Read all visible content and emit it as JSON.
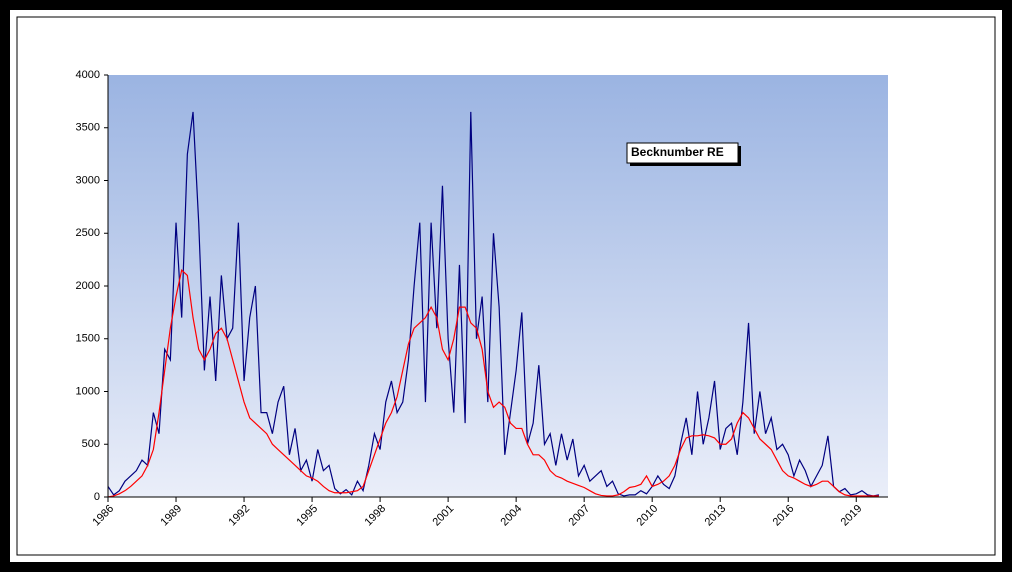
{
  "chart_data": {
    "type": "line",
    "x": [
      1986,
      1986.25,
      1986.5,
      1986.75,
      1987,
      1987.25,
      1987.5,
      1987.75,
      1988,
      1988.25,
      1988.5,
      1988.75,
      1989,
      1989.25,
      1989.5,
      1989.75,
      1990,
      1990.25,
      1990.5,
      1990.75,
      1991,
      1991.25,
      1991.5,
      1991.75,
      1992,
      1992.25,
      1992.5,
      1992.75,
      1993,
      1993.25,
      1993.5,
      1993.75,
      1994,
      1994.25,
      1994.5,
      1994.75,
      1995,
      1995.25,
      1995.5,
      1995.75,
      1996,
      1996.25,
      1996.5,
      1996.75,
      1997,
      1997.25,
      1997.5,
      1997.75,
      1998,
      1998.25,
      1998.5,
      1998.75,
      1999,
      1999.25,
      1999.5,
      1999.75,
      2000,
      2000.25,
      2000.5,
      2000.75,
      2001,
      2001.25,
      2001.5,
      2001.75,
      2002,
      2002.25,
      2002.5,
      2002.75,
      2003,
      2003.25,
      2003.5,
      2003.75,
      2004,
      2004.25,
      2004.5,
      2004.75,
      2005,
      2005.25,
      2005.5,
      2005.75,
      2006,
      2006.25,
      2006.5,
      2006.75,
      2007,
      2007.25,
      2007.5,
      2007.75,
      2008,
      2008.25,
      2008.5,
      2008.75,
      2009,
      2009.25,
      2009.5,
      2009.75,
      2010,
      2010.25,
      2010.5,
      2010.75,
      2011,
      2011.25,
      2011.5,
      2011.75,
      2012,
      2012.25,
      2012.5,
      2012.75,
      2013,
      2013.25,
      2013.5,
      2013.75,
      2014,
      2014.25,
      2014.5,
      2014.75,
      2015,
      2015.25,
      2015.5,
      2015.75,
      2016,
      2016.25,
      2016.5,
      2016.75,
      2017,
      2017.25,
      2017.5,
      2017.75,
      2018,
      2018.25,
      2018.5,
      2018.75,
      2019,
      2019.25,
      2019.5,
      2019.75,
      2020
    ],
    "series": [
      {
        "name": "Becknumber RE",
        "color": "#000080",
        "values": [
          100,
          20,
          60,
          150,
          200,
          250,
          350,
          300,
          800,
          600,
          1400,
          1300,
          2600,
          1700,
          3250,
          3650,
          2600,
          1200,
          1900,
          1100,
          2100,
          1500,
          1600,
          2600,
          1100,
          1700,
          2000,
          800,
          800,
          600,
          900,
          1050,
          400,
          650,
          250,
          350,
          150,
          450,
          250,
          300,
          80,
          30,
          70,
          20,
          150,
          60,
          300,
          600,
          450,
          900,
          1100,
          800,
          900,
          1300,
          2000,
          2600,
          900,
          2600,
          1600,
          2950,
          1500,
          800,
          2200,
          700,
          3650,
          1500,
          1900,
          900,
          2500,
          1800,
          400,
          800,
          1200,
          1750,
          500,
          700,
          1250,
          500,
          600,
          300,
          600,
          350,
          550,
          200,
          300,
          150,
          200,
          250,
          100,
          150,
          30,
          10,
          20,
          20,
          60,
          30,
          100,
          200,
          120,
          80,
          200,
          500,
          750,
          400,
          1000,
          500,
          750,
          1100,
          450,
          650,
          700,
          400,
          900,
          1650,
          600,
          1000,
          600,
          750,
          450,
          500,
          400,
          200,
          350,
          250,
          100,
          200,
          300,
          580,
          100,
          50,
          80,
          20,
          30,
          60,
          20,
          10,
          20
        ]
      },
      {
        "color": "#ff0000",
        "values": [
          0,
          10,
          30,
          60,
          100,
          150,
          200,
          300,
          450,
          800,
          1200,
          1600,
          1900,
          2150,
          2100,
          1700,
          1400,
          1300,
          1400,
          1550,
          1600,
          1500,
          1300,
          1100,
          900,
          750,
          700,
          650,
          600,
          500,
          450,
          400,
          350,
          300,
          250,
          200,
          180,
          150,
          100,
          60,
          40,
          40,
          40,
          50,
          60,
          100,
          250,
          400,
          550,
          700,
          800,
          950,
          1200,
          1450,
          1600,
          1650,
          1700,
          1800,
          1700,
          1400,
          1300,
          1500,
          1800,
          1800,
          1650,
          1600,
          1400,
          1000,
          850,
          900,
          850,
          700,
          650,
          650,
          500,
          400,
          400,
          350,
          250,
          200,
          180,
          150,
          130,
          110,
          90,
          60,
          30,
          15,
          10,
          10,
          20,
          50,
          90,
          100,
          120,
          200,
          100,
          120,
          150,
          200,
          300,
          450,
          560,
          580,
          580,
          590,
          580,
          560,
          500,
          500,
          550,
          700,
          800,
          750,
          650,
          550,
          500,
          450,
          350,
          250,
          200,
          180,
          150,
          120,
          100,
          120,
          150,
          150,
          100,
          50,
          20,
          10,
          10,
          10,
          10,
          10,
          10
        ]
      }
    ],
    "xlim": [
      1986,
      2020.4
    ],
    "xticks": [
      1986,
      1989,
      1992,
      1995,
      1998,
      2001,
      2004,
      2007,
      2010,
      2013,
      2016,
      2019
    ],
    "ylim": [
      0,
      4000
    ],
    "yticks": [
      0,
      500,
      1000,
      1500,
      2000,
      2500,
      3000,
      3500,
      4000
    ]
  }
}
